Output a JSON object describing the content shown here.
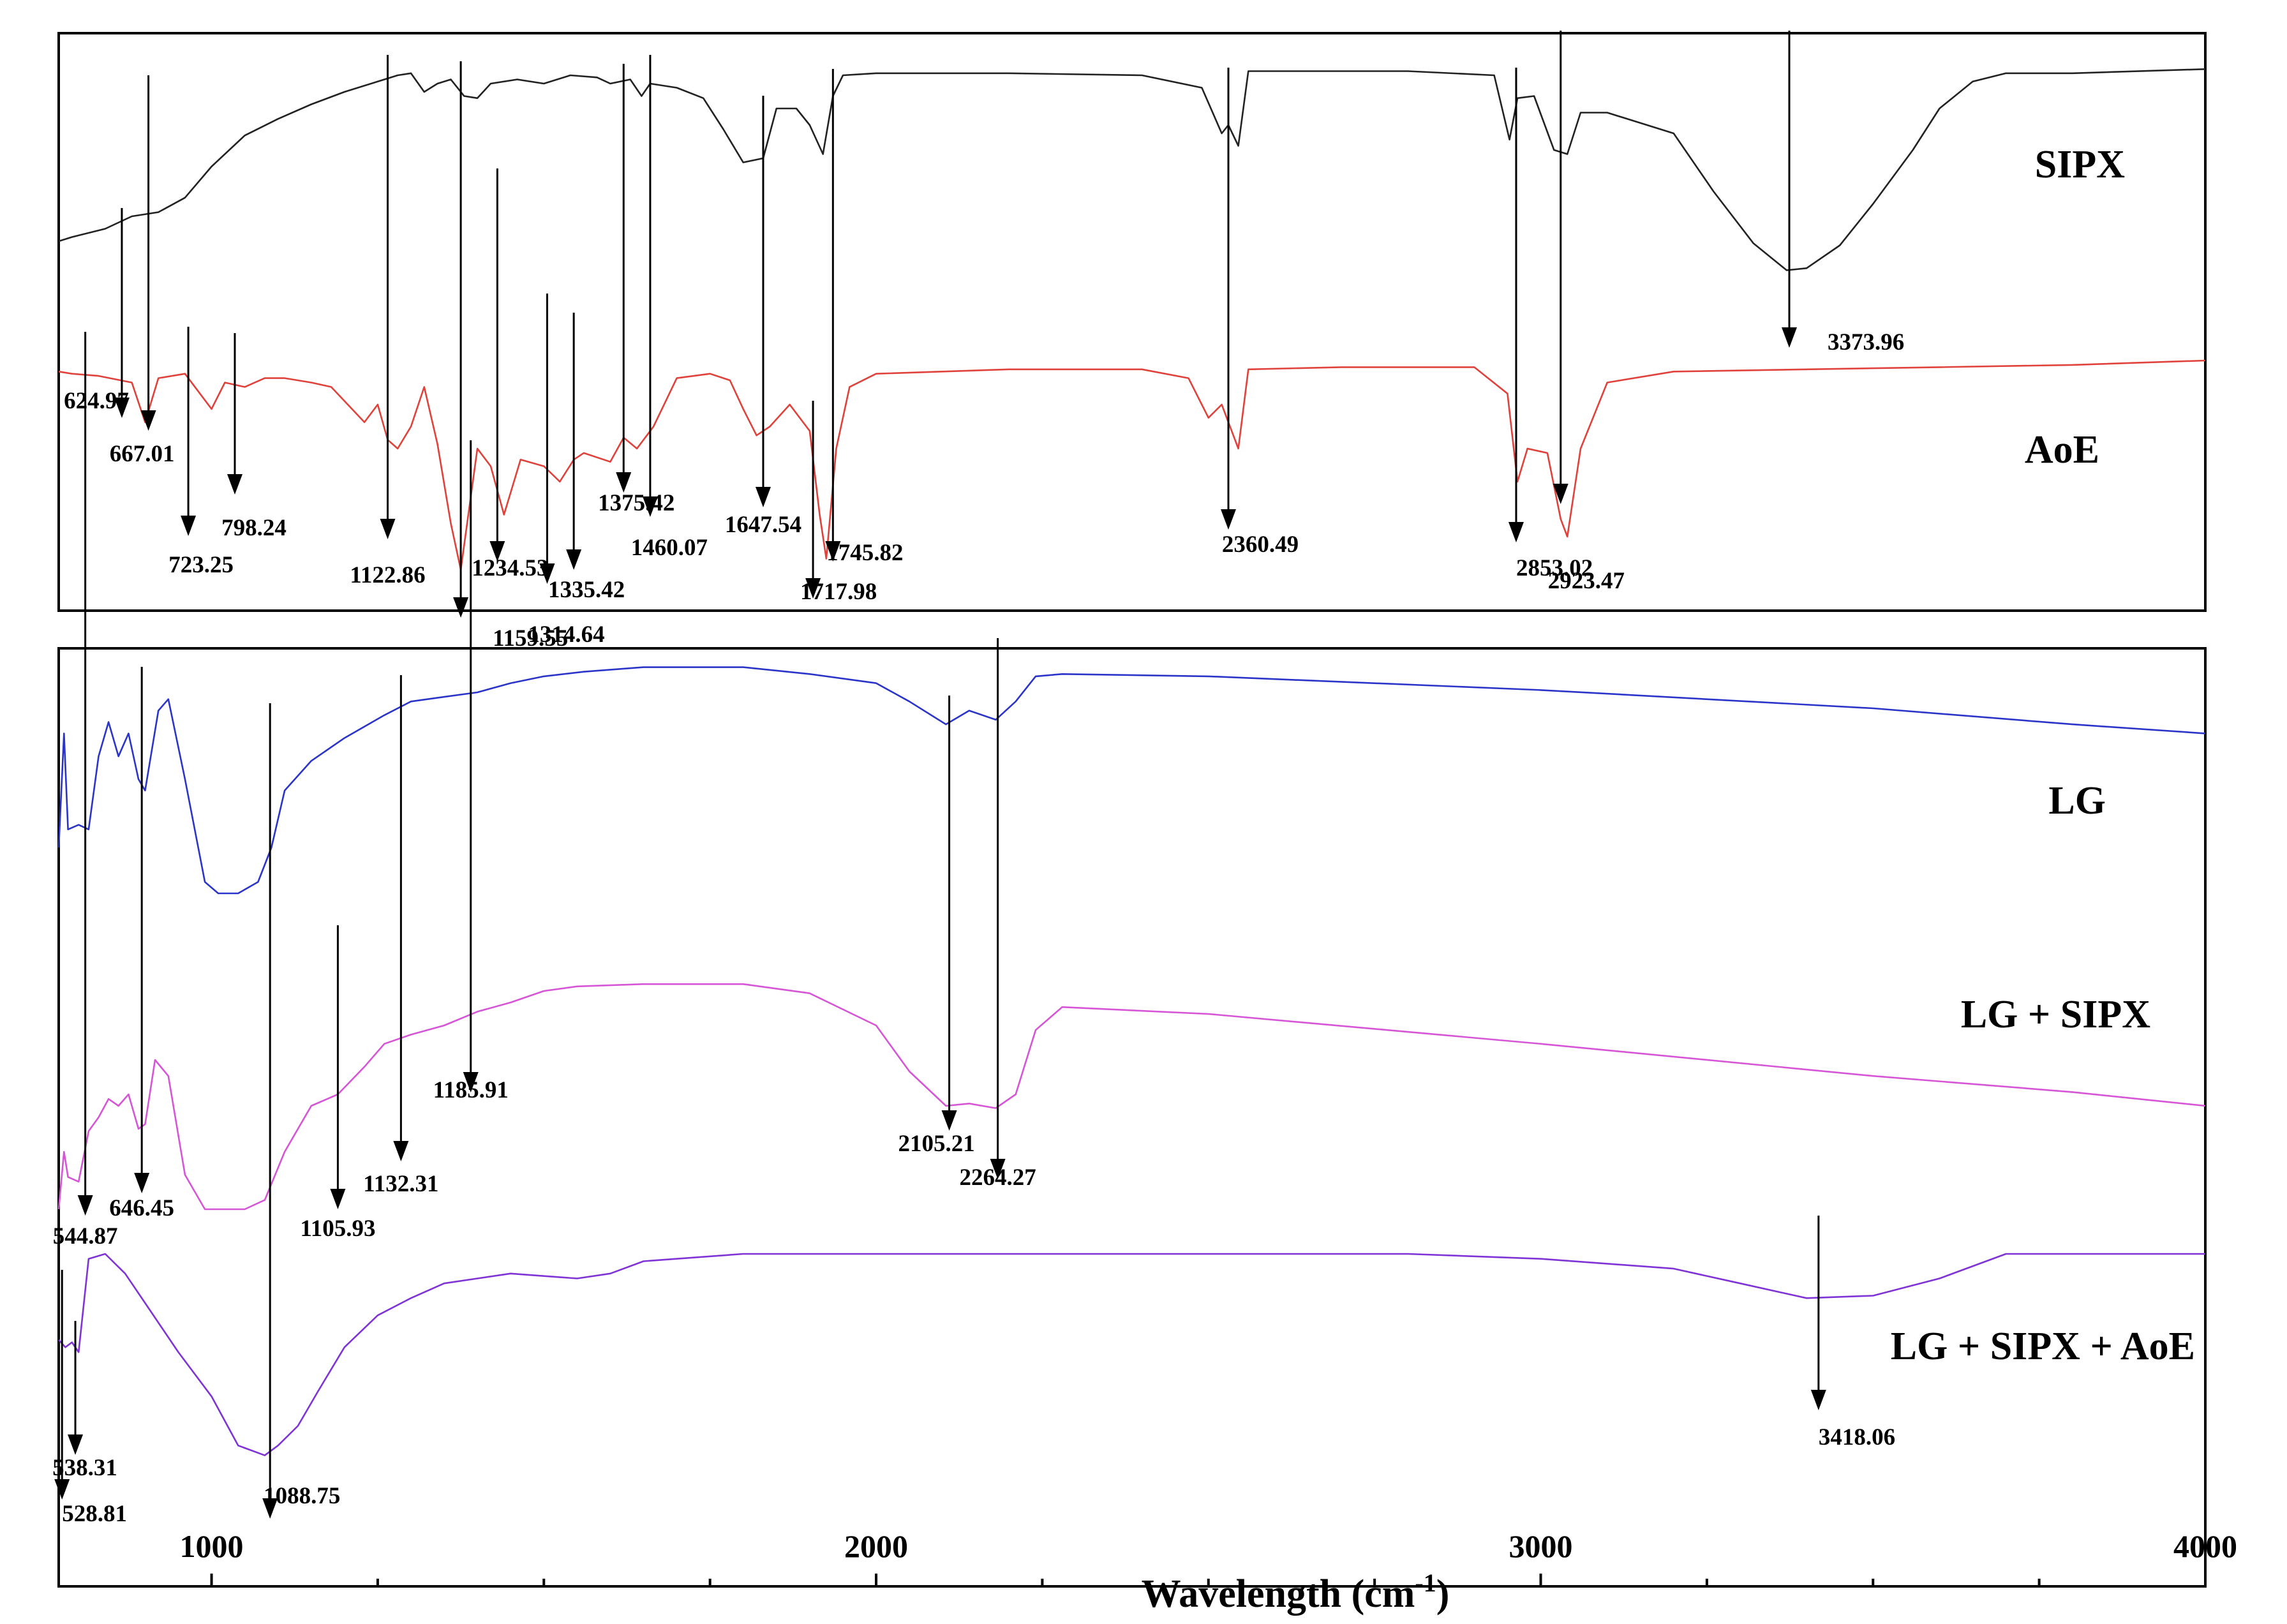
{
  "chart_data": {
    "type": "line",
    "xlabel": "Wavelength (cm",
    "xlabel_sup": "-1",
    "xlabel_close": ")",
    "xlim": [
      770,
      4000
    ],
    "xticks": [
      "1000",
      "2000",
      "3000",
      "4000"
    ],
    "y_axis_shown": false,
    "grid": false,
    "series": [
      {
        "name": "SIPX",
        "color": "#222222",
        "curve": [
          [
            770,
            0.84
          ],
          [
            790,
            0.82
          ],
          [
            840,
            0.78
          ],
          [
            880,
            0.72
          ],
          [
            920,
            0.7
          ],
          [
            960,
            0.63
          ],
          [
            1000,
            0.48
          ],
          [
            1050,
            0.33
          ],
          [
            1100,
            0.25
          ],
          [
            1150,
            0.18
          ],
          [
            1200,
            0.12
          ],
          [
            1250,
            0.07
          ],
          [
            1280,
            0.04
          ],
          [
            1300,
            0.03
          ],
          [
            1320,
            0.12
          ],
          [
            1340,
            0.08
          ],
          [
            1360,
            0.06
          ],
          [
            1380,
            0.14
          ],
          [
            1400,
            0.15
          ],
          [
            1420,
            0.08
          ],
          [
            1460,
            0.06
          ],
          [
            1500,
            0.08
          ],
          [
            1540,
            0.04
          ],
          [
            1580,
            0.05
          ],
          [
            1600,
            0.08
          ],
          [
            1630,
            0.06
          ],
          [
            1647,
            0.14
          ],
          [
            1660,
            0.08
          ],
          [
            1700,
            0.1
          ],
          [
            1740,
            0.15
          ],
          [
            1770,
            0.3
          ],
          [
            1800,
            0.46
          ],
          [
            1830,
            0.44
          ],
          [
            1850,
            0.2
          ],
          [
            1880,
            0.2
          ],
          [
            1900,
            0.28
          ],
          [
            1920,
            0.42
          ],
          [
            1935,
            0.14
          ],
          [
            1950,
            0.04
          ],
          [
            2000,
            0.03
          ],
          [
            2200,
            0.03
          ],
          [
            2400,
            0.04
          ],
          [
            2490,
            0.1
          ],
          [
            2520,
            0.32
          ],
          [
            2530,
            0.28
          ],
          [
            2545,
            0.38
          ],
          [
            2560,
            0.02
          ],
          [
            2700,
            0.02
          ],
          [
            2800,
            0.02
          ],
          [
            2930,
            0.04
          ],
          [
            2953,
            0.35
          ],
          [
            2965,
            0.15
          ],
          [
            2990,
            0.14
          ],
          [
            3020,
            0.4
          ],
          [
            3040,
            0.42
          ],
          [
            3060,
            0.22
          ],
          [
            3100,
            0.22
          ],
          [
            3200,
            0.32
          ],
          [
            3260,
            0.6
          ],
          [
            3320,
            0.85
          ],
          [
            3370,
            0.98
          ],
          [
            3400,
            0.97
          ],
          [
            3450,
            0.86
          ],
          [
            3500,
            0.66
          ],
          [
            3560,
            0.4
          ],
          [
            3600,
            0.2
          ],
          [
            3650,
            0.07
          ],
          [
            3700,
            0.03
          ],
          [
            3800,
            0.03
          ],
          [
            4000,
            0.01
          ]
        ]
      },
      {
        "name": "AoE",
        "color": "#e0413a",
        "curve": [
          [
            770,
            0.05
          ],
          [
            790,
            0.06
          ],
          [
            830,
            0.07
          ],
          [
            880,
            0.1
          ],
          [
            900,
            0.28
          ],
          [
            920,
            0.08
          ],
          [
            960,
            0.06
          ],
          [
            1000,
            0.22
          ],
          [
            1020,
            0.1
          ],
          [
            1050,
            0.12
          ],
          [
            1080,
            0.08
          ],
          [
            1110,
            0.08
          ],
          [
            1150,
            0.1
          ],
          [
            1180,
            0.12
          ],
          [
            1230,
            0.28
          ],
          [
            1250,
            0.2
          ],
          [
            1265,
            0.36
          ],
          [
            1280,
            0.4
          ],
          [
            1300,
            0.3
          ],
          [
            1320,
            0.12
          ],
          [
            1340,
            0.38
          ],
          [
            1360,
            0.74
          ],
          [
            1375,
            0.95
          ],
          [
            1400,
            0.4
          ],
          [
            1420,
            0.48
          ],
          [
            1440,
            0.7
          ],
          [
            1465,
            0.45
          ],
          [
            1500,
            0.48
          ],
          [
            1524,
            0.55
          ],
          [
            1545,
            0.45
          ],
          [
            1560,
            0.42
          ],
          [
            1600,
            0.46
          ],
          [
            1620,
            0.35
          ],
          [
            1640,
            0.4
          ],
          [
            1665,
            0.3
          ],
          [
            1700,
            0.08
          ],
          [
            1750,
            0.06
          ],
          [
            1780,
            0.09
          ],
          [
            1800,
            0.22
          ],
          [
            1820,
            0.34
          ],
          [
            1840,
            0.3
          ],
          [
            1870,
            0.2
          ],
          [
            1900,
            0.32
          ],
          [
            1915,
            0.7
          ],
          [
            1925,
            0.9
          ],
          [
            1940,
            0.4
          ],
          [
            1960,
            0.12
          ],
          [
            2000,
            0.06
          ],
          [
            2200,
            0.04
          ],
          [
            2400,
            0.04
          ],
          [
            2470,
            0.08
          ],
          [
            2500,
            0.26
          ],
          [
            2520,
            0.2
          ],
          [
            2545,
            0.4
          ],
          [
            2560,
            0.04
          ],
          [
            2700,
            0.03
          ],
          [
            2900,
            0.03
          ],
          [
            2950,
            0.15
          ],
          [
            2965,
            0.55
          ],
          [
            2980,
            0.4
          ],
          [
            3010,
            0.42
          ],
          [
            3030,
            0.72
          ],
          [
            3040,
            0.8
          ],
          [
            3060,
            0.4
          ],
          [
            3100,
            0.1
          ],
          [
            3200,
            0.05
          ],
          [
            3400,
            0.04
          ],
          [
            3600,
            0.03
          ],
          [
            3800,
            0.02
          ],
          [
            4000,
            0.0
          ]
        ]
      },
      {
        "name": "LG",
        "color": "#2b34c8",
        "curve": [
          [
            770,
            0.8
          ],
          [
            778,
            0.3
          ],
          [
            784,
            0.72
          ],
          [
            800,
            0.7
          ],
          [
            815,
            0.72
          ],
          [
            830,
            0.4
          ],
          [
            845,
            0.25
          ],
          [
            860,
            0.4
          ],
          [
            875,
            0.3
          ],
          [
            890,
            0.5
          ],
          [
            900,
            0.55
          ],
          [
            920,
            0.2
          ],
          [
            935,
            0.15
          ],
          [
            960,
            0.5
          ],
          [
            990,
            0.95
          ],
          [
            1010,
            1.0
          ],
          [
            1040,
            1.0
          ],
          [
            1070,
            0.95
          ],
          [
            1090,
            0.8
          ],
          [
            1110,
            0.55
          ],
          [
            1150,
            0.42
          ],
          [
            1200,
            0.32
          ],
          [
            1260,
            0.22
          ],
          [
            1300,
            0.16
          ],
          [
            1350,
            0.14
          ],
          [
            1400,
            0.12
          ],
          [
            1450,
            0.08
          ],
          [
            1500,
            0.05
          ],
          [
            1560,
            0.03
          ],
          [
            1650,
            0.01
          ],
          [
            1800,
            0.01
          ],
          [
            1900,
            0.04
          ],
          [
            2000,
            0.08
          ],
          [
            2050,
            0.16
          ],
          [
            2105,
            0.26
          ],
          [
            2140,
            0.2
          ],
          [
            2180,
            0.24
          ],
          [
            2210,
            0.16
          ],
          [
            2240,
            0.05
          ],
          [
            2280,
            0.04
          ],
          [
            2500,
            0.05
          ],
          [
            3000,
            0.11
          ],
          [
            3500,
            0.19
          ],
          [
            3800,
            0.26
          ],
          [
            4000,
            0.3
          ]
        ]
      },
      {
        "name": "LG + SIPX",
        "color": "#d655d6",
        "curve": [
          [
            770,
            1.0
          ],
          [
            778,
            0.75
          ],
          [
            784,
            0.86
          ],
          [
            800,
            0.88
          ],
          [
            815,
            0.66
          ],
          [
            830,
            0.6
          ],
          [
            845,
            0.52
          ],
          [
            860,
            0.55
          ],
          [
            875,
            0.5
          ],
          [
            890,
            0.65
          ],
          [
            900,
            0.63
          ],
          [
            915,
            0.35
          ],
          [
            935,
            0.42
          ],
          [
            960,
            0.85
          ],
          [
            990,
            1.0
          ],
          [
            1050,
            1.0
          ],
          [
            1080,
            0.96
          ],
          [
            1110,
            0.75
          ],
          [
            1150,
            0.55
          ],
          [
            1190,
            0.5
          ],
          [
            1230,
            0.38
          ],
          [
            1260,
            0.28
          ],
          [
            1300,
            0.24
          ],
          [
            1350,
            0.2
          ],
          [
            1400,
            0.14
          ],
          [
            1450,
            0.1
          ],
          [
            1500,
            0.05
          ],
          [
            1550,
            0.03
          ],
          [
            1650,
            0.02
          ],
          [
            1800,
            0.02
          ],
          [
            1900,
            0.06
          ],
          [
            2000,
            0.2
          ],
          [
            2050,
            0.4
          ],
          [
            2105,
            0.55
          ],
          [
            2140,
            0.54
          ],
          [
            2180,
            0.56
          ],
          [
            2210,
            0.5
          ],
          [
            2240,
            0.22
          ],
          [
            2280,
            0.12
          ],
          [
            2500,
            0.15
          ],
          [
            3000,
            0.28
          ],
          [
            3500,
            0.42
          ],
          [
            3800,
            0.49
          ],
          [
            4000,
            0.55
          ]
        ]
      },
      {
        "name": "LG + SIPX + AoE",
        "color": "#7f33d6",
        "curve": [
          [
            770,
            0.35
          ],
          [
            780,
            0.38
          ],
          [
            790,
            0.36
          ],
          [
            800,
            0.4
          ],
          [
            815,
            0.02
          ],
          [
            840,
            0.0
          ],
          [
            870,
            0.08
          ],
          [
            900,
            0.2
          ],
          [
            950,
            0.4
          ],
          [
            1000,
            0.58
          ],
          [
            1040,
            0.78
          ],
          [
            1080,
            0.82
          ],
          [
            1100,
            0.78
          ],
          [
            1130,
            0.7
          ],
          [
            1160,
            0.56
          ],
          [
            1200,
            0.38
          ],
          [
            1250,
            0.25
          ],
          [
            1300,
            0.18
          ],
          [
            1350,
            0.12
          ],
          [
            1400,
            0.1
          ],
          [
            1450,
            0.08
          ],
          [
            1500,
            0.09
          ],
          [
            1550,
            0.1
          ],
          [
            1600,
            0.08
          ],
          [
            1650,
            0.03
          ],
          [
            1800,
            0.0
          ],
          [
            2000,
            0.0
          ],
          [
            2800,
            0.0
          ],
          [
            3000,
            0.02
          ],
          [
            3200,
            0.06
          ],
          [
            3300,
            0.12
          ],
          [
            3400,
            0.18
          ],
          [
            3500,
            0.17
          ],
          [
            3600,
            0.1
          ],
          [
            3700,
            0.0
          ],
          [
            4000,
            0.0
          ]
        ]
      }
    ],
    "panels": [
      {
        "series": [
          "SIPX",
          "AoE"
        ]
      },
      {
        "series": [
          "LG",
          "LG + SIPX",
          "LG + SIPX + AoE"
        ]
      }
    ],
    "peak_annotations": [
      {
        "label": "3373.96",
        "x": 3374
      },
      {
        "label": "624.97",
        "x": 865
      },
      {
        "label": "667.01",
        "x": 905
      },
      {
        "label": "723.25",
        "x": 965
      },
      {
        "label": "798.24",
        "x": 1035
      },
      {
        "label": "1122.86",
        "x": 1265
      },
      {
        "label": "1159.55",
        "x": 1375
      },
      {
        "label": "1234.53",
        "x": 1430
      },
      {
        "label": "1314.64",
        "x": 1505
      },
      {
        "label": "1335.42",
        "x": 1545
      },
      {
        "label": "1375.42",
        "x": 1620
      },
      {
        "label": "1460.07",
        "x": 1660
      },
      {
        "label": "1647.54",
        "x": 1830
      },
      {
        "label": "1717.98",
        "x": 1905
      },
      {
        "label": "1745.82",
        "x": 1935
      },
      {
        "label": "2360.49",
        "x": 2530
      },
      {
        "label": "2853.02",
        "x": 2963
      },
      {
        "label": "2923.47",
        "x": 3030
      },
      {
        "label": "544.87",
        "x": 810
      },
      {
        "label": "646.45",
        "x": 895
      },
      {
        "label": "1105.93",
        "x": 1190
      },
      {
        "label": "1132.31",
        "x": 1285
      },
      {
        "label": "1185.91",
        "x": 1390
      },
      {
        "label": "2105.21",
        "x": 2110
      },
      {
        "label": "2264.27",
        "x": 2183
      },
      {
        "label": "528.81",
        "x": 775
      },
      {
        "label": "538.31",
        "x": 795
      },
      {
        "label": "1088.75",
        "x": 1088
      },
      {
        "label": "3418.06",
        "x": 3418
      }
    ]
  }
}
